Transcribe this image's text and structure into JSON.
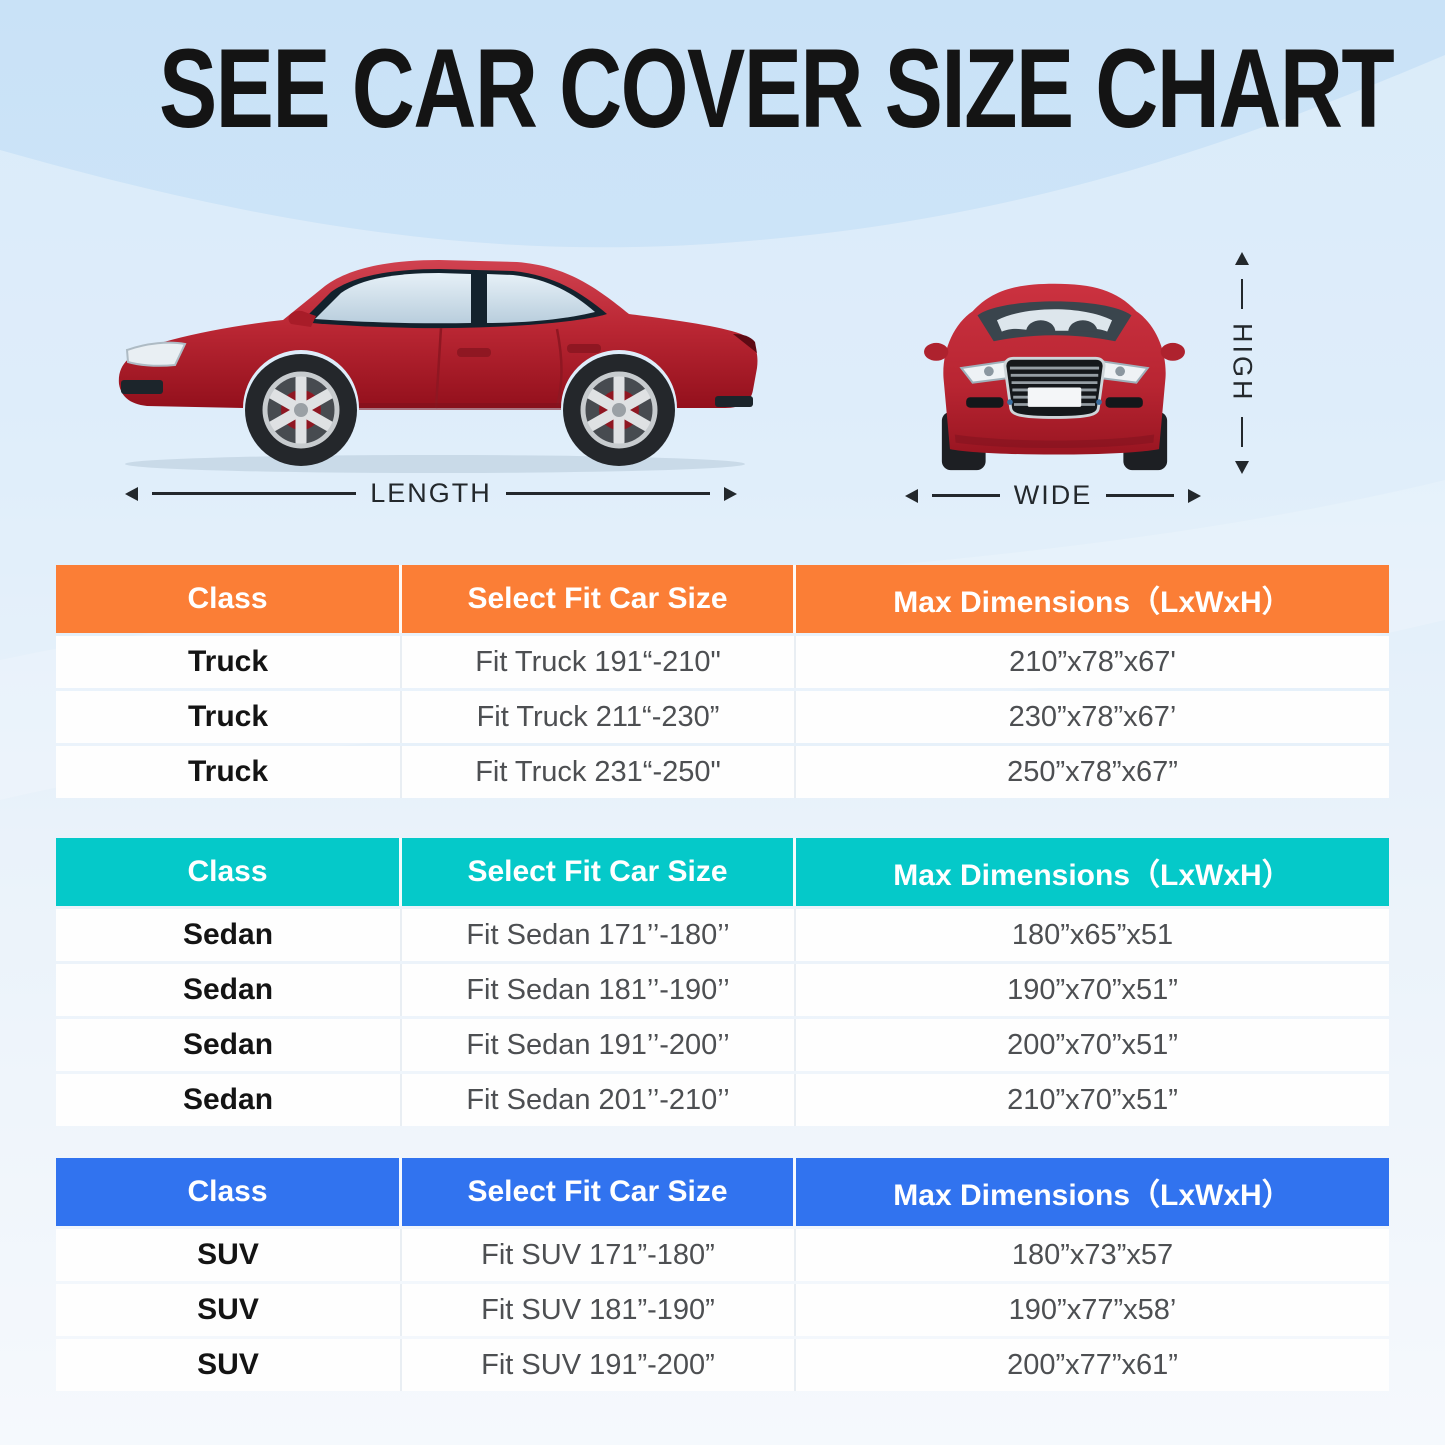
{
  "page": {
    "title": "SEE CAR COVER SIZE CHART"
  },
  "diagram": {
    "length_label": "LENGTH",
    "wide_label": "WIDE",
    "high_label": "HIGH",
    "car_color": "#c02c38"
  },
  "tables": [
    {
      "name": "Truck",
      "header_color": "#FB7E36",
      "headers": [
        "Class",
        "Select Fit Car Size",
        "Max Dimensions（LxWxH）"
      ],
      "rows": [
        [
          "Truck",
          "Fit Truck 191“-210\"",
          "210”x78”x67'"
        ],
        [
          "Truck",
          "Fit Truck 211“-230”",
          "230”x78”x67’"
        ],
        [
          "Truck",
          "Fit Truck 231“-250\"",
          "250”x78”x67”"
        ]
      ]
    },
    {
      "name": "Sedan",
      "header_color": "#05C9C9",
      "headers": [
        "Class",
        "Select Fit Car Size",
        "Max Dimensions（LxWxH）"
      ],
      "rows": [
        [
          "Sedan",
          "Fit Sedan 171’’-180’’",
          "180”x65”x51"
        ],
        [
          "Sedan",
          "Fit Sedan 181’’-190’’",
          "190”x70”x51”"
        ],
        [
          "Sedan",
          "Fit Sedan 191’’-200’’",
          "200”x70”x51”"
        ],
        [
          "Sedan",
          "Fit Sedan 201’’-210’’",
          "210”x70”x51”"
        ]
      ]
    },
    {
      "name": "SUV",
      "header_color": "#3173EF",
      "headers": [
        "Class",
        "Select Fit Car Size",
        "Max Dimensions（LxWxH）"
      ],
      "rows": [
        [
          "SUV",
          "Fit SUV 171”-180”",
          "180”x73”x57"
        ],
        [
          "SUV",
          "Fit SUV 181”-190”",
          "190”x77”x58’"
        ],
        [
          "SUV",
          "Fit SUV 191”-200”",
          "200”x77”x61”"
        ]
      ]
    }
  ]
}
